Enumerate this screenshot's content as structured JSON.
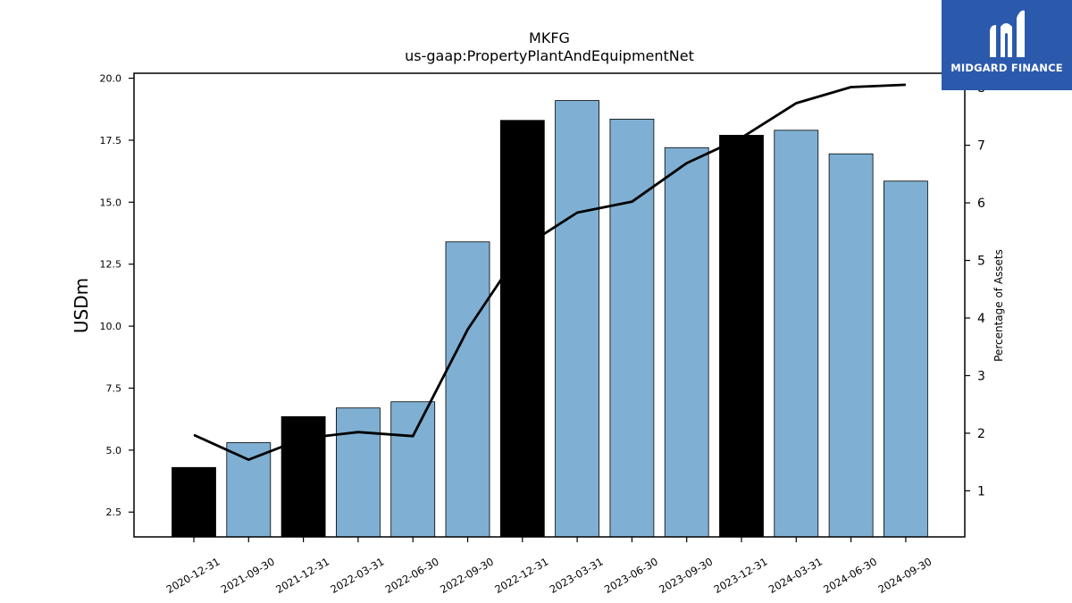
{
  "chart_data": {
    "type": "bar",
    "title": "MKFG",
    "subtitle": "us-gaap:PropertyPlantAndEquipmentNet",
    "ylabel": "USDm",
    "y2label": "Percentage of Assets",
    "ylim": [
      1.5,
      20.2
    ],
    "y2lim": [
      0.2,
      8.25
    ],
    "yticks": [
      "2.5",
      "5.0",
      "7.5",
      "10.0",
      "12.5",
      "15.0",
      "17.5",
      "20.0"
    ],
    "y2ticks": [
      "1",
      "2",
      "3",
      "4",
      "5",
      "6",
      "7",
      "8"
    ],
    "categories": [
      "2020-12-31",
      "2021-09-30",
      "2021-12-31",
      "2022-03-31",
      "2022-06-30",
      "2022-09-30",
      "2022-12-31",
      "2023-03-31",
      "2023-06-30",
      "2023-09-30",
      "2023-12-31",
      "2024-03-31",
      "2024-06-30",
      "2024-09-30"
    ],
    "series": [
      {
        "values": [
          4.3,
          5.3,
          6.35,
          6.7,
          6.95,
          13.4,
          18.3,
          19.1,
          18.35,
          17.2,
          17.7,
          17.9,
          16.95,
          15.85
        ],
        "axis": "left",
        "kind": "bar",
        "annual_flags": [
          true,
          false,
          true,
          false,
          false,
          false,
          true,
          false,
          false,
          false,
          true,
          false,
          false,
          false
        ]
      },
      {
        "values": [
          1.97,
          1.54,
          1.91,
          2.02,
          1.95,
          3.8,
          5.22,
          5.83,
          6.02,
          6.69,
          7.13,
          7.73,
          8.01,
          8.05
        ],
        "axis": "right",
        "kind": "line"
      }
    ],
    "colors": {
      "bar": "#7fb0d3",
      "annual_bar": "#000000",
      "line": "#000000"
    },
    "grid": false
  },
  "brand": {
    "name": "MIDGARD FINANCE",
    "color": "#2b5aad"
  }
}
